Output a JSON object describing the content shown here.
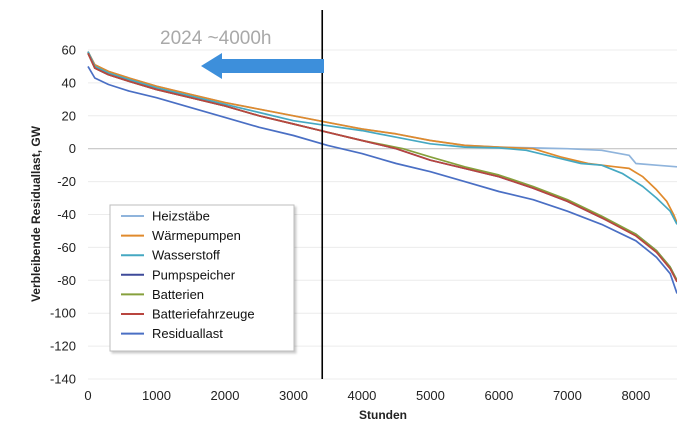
{
  "chart_data": {
    "type": "line",
    "title": "",
    "xlabel": "Stunden",
    "ylabel": "Verbleibende Residuallast, GW",
    "xlim": [
      0,
      8600
    ],
    "ylim": [
      -140,
      60
    ],
    "x_ticks": [
      0,
      1000,
      2000,
      3000,
      4000,
      5000,
      6000,
      7000,
      8000
    ],
    "y_ticks": [
      60,
      40,
      20,
      0,
      -20,
      -40,
      -60,
      -80,
      -100,
      -120,
      -140
    ],
    "grid": "horizontal",
    "legend_position": "lower-left",
    "annotation": {
      "text": "2024  ~4000h",
      "marker_x": 3420,
      "arrow_color": "#3d8fdb",
      "arrow_direction": "left"
    },
    "series": [
      {
        "name": "Heizstäbe",
        "color": "#8fb4dc",
        "points": [
          [
            0,
            59
          ],
          [
            100,
            51
          ],
          [
            300,
            47
          ],
          [
            600,
            43
          ],
          [
            1000,
            38
          ],
          [
            1500,
            33
          ],
          [
            2000,
            28
          ],
          [
            2500,
            24
          ],
          [
            3000,
            20
          ],
          [
            3500,
            16
          ],
          [
            4000,
            12
          ],
          [
            4500,
            9
          ],
          [
            5000,
            5
          ],
          [
            5500,
            2
          ],
          [
            6000,
            1
          ],
          [
            6500,
            0.5
          ],
          [
            7000,
            0
          ],
          [
            7500,
            -1
          ],
          [
            7900,
            -4
          ],
          [
            8000,
            -9
          ],
          [
            8300,
            -10
          ],
          [
            8600,
            -11
          ]
        ]
      },
      {
        "name": "Wärmepumpen",
        "color": "#e08a2c",
        "points": [
          [
            0,
            59
          ],
          [
            100,
            51
          ],
          [
            300,
            47
          ],
          [
            600,
            43
          ],
          [
            1000,
            38
          ],
          [
            1500,
            33
          ],
          [
            2000,
            28
          ],
          [
            2500,
            24
          ],
          [
            3000,
            20
          ],
          [
            3500,
            16
          ],
          [
            4000,
            12
          ],
          [
            4500,
            9
          ],
          [
            5000,
            5
          ],
          [
            5500,
            2
          ],
          [
            6000,
            1
          ],
          [
            6500,
            0
          ],
          [
            6900,
            -5
          ],
          [
            7300,
            -9
          ],
          [
            7700,
            -11
          ],
          [
            7900,
            -12
          ],
          [
            8100,
            -17
          ],
          [
            8300,
            -25
          ],
          [
            8450,
            -32
          ],
          [
            8550,
            -40
          ],
          [
            8600,
            -45
          ]
        ]
      },
      {
        "name": "Wasserstoff",
        "color": "#45a8c2",
        "points": [
          [
            0,
            59
          ],
          [
            100,
            50
          ],
          [
            300,
            46
          ],
          [
            600,
            42
          ],
          [
            1000,
            37
          ],
          [
            1500,
            32
          ],
          [
            2000,
            27
          ],
          [
            2500,
            22
          ],
          [
            3000,
            17
          ],
          [
            3500,
            14
          ],
          [
            4000,
            11
          ],
          [
            4500,
            7
          ],
          [
            5000,
            3
          ],
          [
            5500,
            1
          ],
          [
            6000,
            0.5
          ],
          [
            6400,
            -1
          ],
          [
            6800,
            -5
          ],
          [
            7200,
            -9
          ],
          [
            7500,
            -10
          ],
          [
            7800,
            -15
          ],
          [
            8100,
            -23
          ],
          [
            8300,
            -30
          ],
          [
            8500,
            -38
          ],
          [
            8600,
            -46
          ]
        ]
      },
      {
        "name": "Pumpspeicher",
        "color": "#3e4a9a",
        "points": [
          [
            0,
            58
          ],
          [
            100,
            49
          ],
          [
            300,
            45
          ],
          [
            600,
            41
          ],
          [
            1000,
            36
          ],
          [
            1500,
            31
          ],
          [
            2000,
            26
          ],
          [
            2500,
            20
          ],
          [
            3000,
            15
          ],
          [
            3500,
            10
          ],
          [
            4000,
            5
          ],
          [
            4500,
            0
          ],
          [
            5000,
            -7
          ],
          [
            5500,
            -12
          ],
          [
            6000,
            -17
          ],
          [
            6500,
            -24
          ],
          [
            7000,
            -32
          ],
          [
            7500,
            -42
          ],
          [
            8000,
            -52
          ],
          [
            8300,
            -62
          ],
          [
            8500,
            -72
          ],
          [
            8600,
            -80
          ]
        ]
      },
      {
        "name": "Batterien",
        "color": "#86a03c",
        "points": [
          [
            0,
            58
          ],
          [
            100,
            49
          ],
          [
            300,
            45
          ],
          [
            600,
            41
          ],
          [
            1000,
            36
          ],
          [
            1500,
            31
          ],
          [
            2000,
            26
          ],
          [
            2500,
            20
          ],
          [
            3000,
            15
          ],
          [
            3500,
            10
          ],
          [
            4000,
            5
          ],
          [
            4600,
            0
          ],
          [
            5000,
            -5
          ],
          [
            5500,
            -11
          ],
          [
            6000,
            -16
          ],
          [
            6500,
            -23
          ],
          [
            7000,
            -31
          ],
          [
            7500,
            -41
          ],
          [
            8000,
            -52
          ],
          [
            8300,
            -62
          ],
          [
            8500,
            -72
          ],
          [
            8600,
            -80
          ]
        ]
      },
      {
        "name": "Batteriefahrzeuge",
        "color": "#b9453f",
        "points": [
          [
            0,
            58
          ],
          [
            100,
            49
          ],
          [
            300,
            45
          ],
          [
            600,
            41
          ],
          [
            1000,
            36
          ],
          [
            1500,
            31
          ],
          [
            2000,
            26
          ],
          [
            2500,
            20
          ],
          [
            3000,
            15
          ],
          [
            3500,
            10
          ],
          [
            4000,
            5
          ],
          [
            4500,
            0
          ],
          [
            5000,
            -7
          ],
          [
            5500,
            -12
          ],
          [
            6000,
            -17
          ],
          [
            6500,
            -24
          ],
          [
            7000,
            -32
          ],
          [
            7500,
            -42
          ],
          [
            8000,
            -53
          ],
          [
            8300,
            -63
          ],
          [
            8500,
            -73
          ],
          [
            8600,
            -81
          ]
        ]
      },
      {
        "name": "Residuallast",
        "color": "#4a6fc4",
        "points": [
          [
            0,
            50
          ],
          [
            100,
            43
          ],
          [
            300,
            39
          ],
          [
            600,
            35
          ],
          [
            1000,
            31
          ],
          [
            1500,
            25
          ],
          [
            2000,
            19
          ],
          [
            2500,
            13
          ],
          [
            3000,
            8
          ],
          [
            3500,
            2
          ],
          [
            4000,
            -3
          ],
          [
            4500,
            -9
          ],
          [
            5000,
            -14
          ],
          [
            5500,
            -20
          ],
          [
            6000,
            -26
          ],
          [
            6500,
            -31
          ],
          [
            7000,
            -38
          ],
          [
            7500,
            -46
          ],
          [
            8000,
            -56
          ],
          [
            8300,
            -66
          ],
          [
            8500,
            -76
          ],
          [
            8600,
            -88
          ]
        ]
      }
    ]
  }
}
